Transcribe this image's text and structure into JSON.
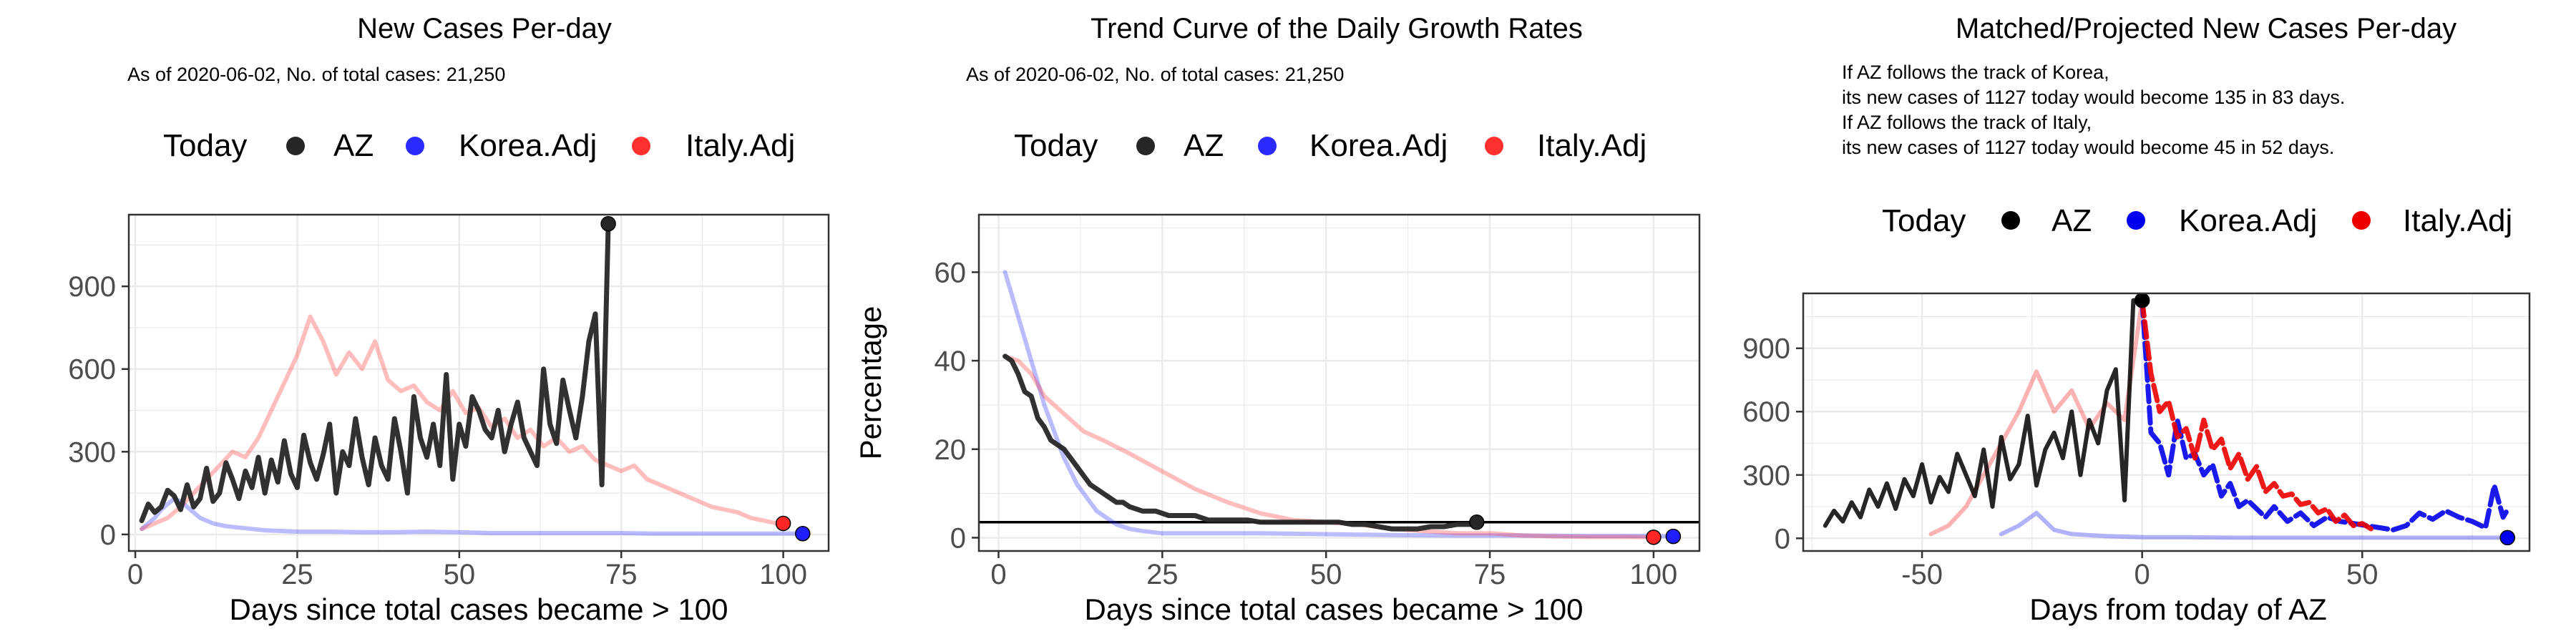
{
  "chart_data": [
    {
      "type": "line",
      "title": "New Cases Per-day",
      "subtitle": "As of 2020-06-02, No. of total cases: 21,250",
      "legend": {
        "title": "Today",
        "items": [
          "AZ",
          "Korea.Adj",
          "Italy.Adj"
        ],
        "position": "top"
      },
      "xlabel": "Days since total cases became > 100",
      "ylabel": "",
      "xlim": [
        -1,
        107
      ],
      "ylim": [
        -60,
        1160
      ],
      "xticks": [
        "0",
        "25",
        "50",
        "75",
        "100"
      ],
      "yticks": [
        "0",
        "300",
        "600",
        "900"
      ],
      "grid": true,
      "colors": {
        "AZ": "#262626",
        "Korea.Adj": "#1f1fff",
        "Italy.Adj": "#ff2626"
      },
      "series": [
        {
          "name": "AZ",
          "x": [
            1,
            2,
            3,
            4,
            5,
            6,
            7,
            8,
            9,
            10,
            11,
            12,
            13,
            14,
            15,
            16,
            17,
            18,
            19,
            20,
            21,
            22,
            23,
            24,
            25,
            26,
            27,
            28,
            29,
            30,
            31,
            32,
            33,
            34,
            35,
            36,
            37,
            38,
            39,
            40,
            41,
            42,
            43,
            44,
            45,
            46,
            47,
            48,
            49,
            50,
            51,
            52,
            53,
            54,
            55,
            56,
            57,
            58,
            59,
            60,
            61,
            62,
            63,
            64,
            65,
            66,
            67,
            68,
            69,
            70,
            71,
            72,
            73
          ],
          "y": [
            50,
            110,
            80,
            100,
            160,
            140,
            90,
            180,
            100,
            130,
            240,
            120,
            150,
            260,
            200,
            130,
            230,
            170,
            280,
            150,
            270,
            190,
            340,
            220,
            170,
            360,
            260,
            200,
            290,
            400,
            150,
            300,
            250,
            420,
            280,
            180,
            350,
            250,
            200,
            420,
            300,
            150,
            500,
            350,
            280,
            400,
            250,
            580,
            200,
            400,
            320,
            500,
            450,
            380,
            350,
            450,
            300,
            400,
            480,
            350,
            300,
            250,
            600,
            400,
            330,
            560,
            450,
            350,
            500,
            700,
            800,
            180,
            1127
          ],
          "today": {
            "x": 73,
            "y": 1127
          }
        },
        {
          "name": "Korea.Adj",
          "x": [
            1,
            2,
            3,
            4,
            5,
            6,
            7,
            8,
            9,
            10,
            11,
            12,
            14,
            16,
            18,
            20,
            25,
            30,
            35,
            40,
            45,
            50,
            55,
            60,
            65,
            70,
            75,
            80,
            85,
            90,
            95,
            100,
            103
          ],
          "y": [
            20,
            40,
            60,
            90,
            110,
            130,
            120,
            100,
            80,
            60,
            50,
            40,
            30,
            25,
            20,
            15,
            10,
            10,
            8,
            8,
            10,
            8,
            5,
            5,
            5,
            5,
            5,
            3,
            3,
            3,
            3,
            3,
            3
          ],
          "today": {
            "x": 103,
            "y": 3
          }
        },
        {
          "name": "Italy.Adj",
          "x": [
            1,
            3,
            5,
            7,
            9,
            11,
            13,
            15,
            17,
            19,
            21,
            23,
            25,
            27,
            29,
            31,
            33,
            35,
            37,
            39,
            41,
            43,
            45,
            47,
            49,
            51,
            53,
            55,
            57,
            59,
            61,
            63,
            65,
            67,
            69,
            71,
            73,
            75,
            77,
            79,
            81,
            83,
            85,
            87,
            89,
            91,
            93,
            95,
            97,
            99,
            100
          ],
          "y": [
            20,
            40,
            60,
            100,
            150,
            200,
            250,
            300,
            280,
            350,
            450,
            550,
            650,
            790,
            700,
            580,
            660,
            600,
            700,
            560,
            520,
            540,
            480,
            450,
            520,
            440,
            460,
            390,
            420,
            350,
            380,
            320,
            350,
            300,
            320,
            270,
            250,
            230,
            250,
            200,
            180,
            160,
            140,
            120,
            100,
            90,
            80,
            60,
            50,
            40,
            40
          ],
          "today": {
            "x": 100,
            "y": 40
          }
        }
      ]
    },
    {
      "type": "line",
      "title": "Trend Curve of the Daily Growth Rates",
      "subtitle": "As of 2020-06-02, No. of total cases: 21,250",
      "legend": {
        "title": "Today",
        "items": [
          "AZ",
          "Korea.Adj",
          "Italy.Adj"
        ],
        "position": "top"
      },
      "xlabel": "Days since total cases became > 100",
      "ylabel": "Percentage",
      "xlim": [
        -3,
        107
      ],
      "ylim": [
        -3,
        73
      ],
      "xticks": [
        "0",
        "25",
        "50",
        "75",
        "100"
      ],
      "yticks": [
        "0",
        "20",
        "40",
        "60"
      ],
      "hline": 3.5,
      "grid": true,
      "colors": {
        "AZ": "#262626",
        "Korea.Adj": "#1f1fff",
        "Italy.Adj": "#ff2626"
      },
      "series": [
        {
          "name": "AZ",
          "x": [
            1,
            2,
            3,
            4,
            5,
            6,
            7,
            8,
            9,
            10,
            11,
            12,
            13,
            14,
            15,
            16,
            17,
            18,
            19,
            20,
            22,
            24,
            26,
            28,
            30,
            32,
            34,
            36,
            38,
            40,
            42,
            44,
            46,
            48,
            50,
            52,
            54,
            56,
            58,
            60,
            62,
            64,
            66,
            68,
            70,
            72,
            73
          ],
          "y": [
            41,
            40,
            37,
            33,
            32,
            27,
            25,
            22,
            21,
            20,
            18,
            16,
            14,
            12,
            11,
            10,
            9,
            8,
            8,
            7,
            6,
            6,
            5,
            5,
            5,
            4,
            4,
            4,
            4,
            3.5,
            3.5,
            3.5,
            3.5,
            3.5,
            3.5,
            3.5,
            3,
            3,
            2.5,
            2,
            2,
            2,
            2.5,
            2.5,
            3,
            3,
            3.5
          ],
          "today": {
            "x": 73,
            "y": 3.5
          }
        },
        {
          "name": "Korea.Adj",
          "x": [
            1,
            2,
            3,
            4,
            5,
            6,
            7,
            8,
            9,
            10,
            11,
            12,
            13,
            14,
            15,
            16,
            17,
            18,
            20,
            22,
            25,
            30,
            40,
            50,
            60,
            70,
            80,
            90,
            100,
            103
          ],
          "y": [
            60,
            55,
            50,
            45,
            40,
            35,
            30,
            26,
            22,
            18,
            15,
            12,
            10,
            8,
            6,
            5,
            4,
            3,
            2,
            1.5,
            1,
            1,
            1,
            0.8,
            0.6,
            0.5,
            0.5,
            0.4,
            0.4,
            0.3
          ],
          "today": {
            "x": 103,
            "y": 0.3
          }
        },
        {
          "name": "Italy.Adj",
          "x": [
            1,
            3,
            5,
            7,
            10,
            13,
            16,
            20,
            25,
            30,
            35,
            40,
            45,
            50,
            55,
            60,
            65,
            70,
            75,
            80,
            85,
            90,
            95,
            100
          ],
          "y": [
            41,
            40,
            37,
            32,
            28,
            24,
            22,
            19,
            15,
            11,
            8,
            5.5,
            4,
            3.5,
            3,
            2,
            1.5,
            1,
            1,
            0.5,
            0.3,
            0.2,
            0.2,
            0.1
          ],
          "today": {
            "x": 100,
            "y": 0.1
          }
        }
      ]
    },
    {
      "type": "line",
      "title": "Matched/Projected New Cases Per-day",
      "subtitle_lines": [
        "If AZ follows the track of Korea,",
        "its new cases of 1127 today would become 135 in 83 days.",
        "If AZ follows the track of Italy,",
        "its new cases of 1127 today would become 45 in 52 days."
      ],
      "legend": {
        "title": "Today",
        "items": [
          "AZ",
          "Korea.Adj",
          "Italy.Adj"
        ],
        "position": "top"
      },
      "xlabel": "Days from today of AZ",
      "ylabel": "",
      "xlim": [
        -77,
        88
      ],
      "ylim": [
        -60,
        1160
      ],
      "xticks": [
        "-50",
        "0",
        "50"
      ],
      "yticks": [
        "0",
        "300",
        "600",
        "900"
      ],
      "grid": true,
      "colors": {
        "AZ": "#000000",
        "Korea.Adj": "#0000ee",
        "Italy.Adj": "#ee0000"
      },
      "series": [
        {
          "name": "AZ",
          "x": [
            -72,
            -70,
            -68,
            -66,
            -64,
            -62,
            -60,
            -58,
            -56,
            -54,
            -52,
            -50,
            -48,
            -46,
            -44,
            -42,
            -40,
            -38,
            -36,
            -34,
            -32,
            -30,
            -28,
            -26,
            -24,
            -22,
            -20,
            -18,
            -16,
            -14,
            -12,
            -10,
            -8,
            -6,
            -4,
            -2,
            0
          ],
          "y": [
            60,
            130,
            80,
            170,
            100,
            230,
            150,
            260,
            140,
            280,
            200,
            350,
            170,
            290,
            220,
            400,
            300,
            200,
            420,
            150,
            480,
            280,
            350,
            580,
            250,
            420,
            500,
            380,
            600,
            300,
            560,
            450,
            700,
            800,
            180,
            1127,
            1127
          ],
          "today": {
            "x": 0,
            "y": 1127
          }
        },
        {
          "name": "Korea.Adj",
          "x": [
            -32,
            -28,
            -24,
            -20,
            -16,
            -12,
            -8,
            -4,
            0,
            10,
            20,
            30,
            40,
            50,
            60,
            70,
            80,
            83
          ],
          "y": [
            20,
            60,
            120,
            40,
            20,
            15,
            10,
            8,
            5,
            5,
            3,
            3,
            3,
            3,
            3,
            3,
            3,
            3
          ],
          "today": {
            "x": 83,
            "y": 3
          }
        },
        {
          "name": "Italy.Adj",
          "x": [
            -48,
            -44,
            -40,
            -36,
            -32,
            -28,
            -24,
            -20,
            -16,
            -12,
            -8,
            -4,
            0
          ],
          "y": [
            20,
            60,
            150,
            300,
            450,
            600,
            790,
            600,
            700,
            520,
            640,
            560,
            1127
          ]
        },
        {
          "name": "Korea.Adj projected",
          "x": [
            0,
            2,
            4,
            6,
            8,
            10,
            12,
            14,
            16,
            18,
            20,
            22,
            24,
            26,
            28,
            30,
            33,
            36,
            39,
            42,
            45,
            48,
            51,
            54,
            57,
            60,
            63,
            66,
            69,
            72,
            75,
            78,
            80,
            82,
            83
          ],
          "y": [
            1127,
            500,
            450,
            300,
            560,
            380,
            400,
            300,
            350,
            200,
            260,
            150,
            180,
            140,
            100,
            150,
            80,
            120,
            60,
            100,
            80,
            70,
            60,
            50,
            40,
            60,
            120,
            90,
            130,
            100,
            80,
            50,
            250,
            100,
            135
          ],
          "style": "dashed"
        },
        {
          "name": "Italy.Adj projected",
          "x": [
            0,
            2,
            4,
            6,
            8,
            10,
            12,
            14,
            16,
            18,
            20,
            22,
            24,
            26,
            28,
            30,
            32,
            34,
            36,
            38,
            40,
            42,
            44,
            46,
            48,
            50,
            52
          ],
          "y": [
            1127,
            780,
            600,
            650,
            480,
            520,
            380,
            560,
            420,
            470,
            330,
            400,
            280,
            340,
            220,
            260,
            200,
            210,
            160,
            170,
            120,
            140,
            80,
            110,
            60,
            70,
            45
          ],
          "style": "dashed"
        }
      ]
    }
  ]
}
